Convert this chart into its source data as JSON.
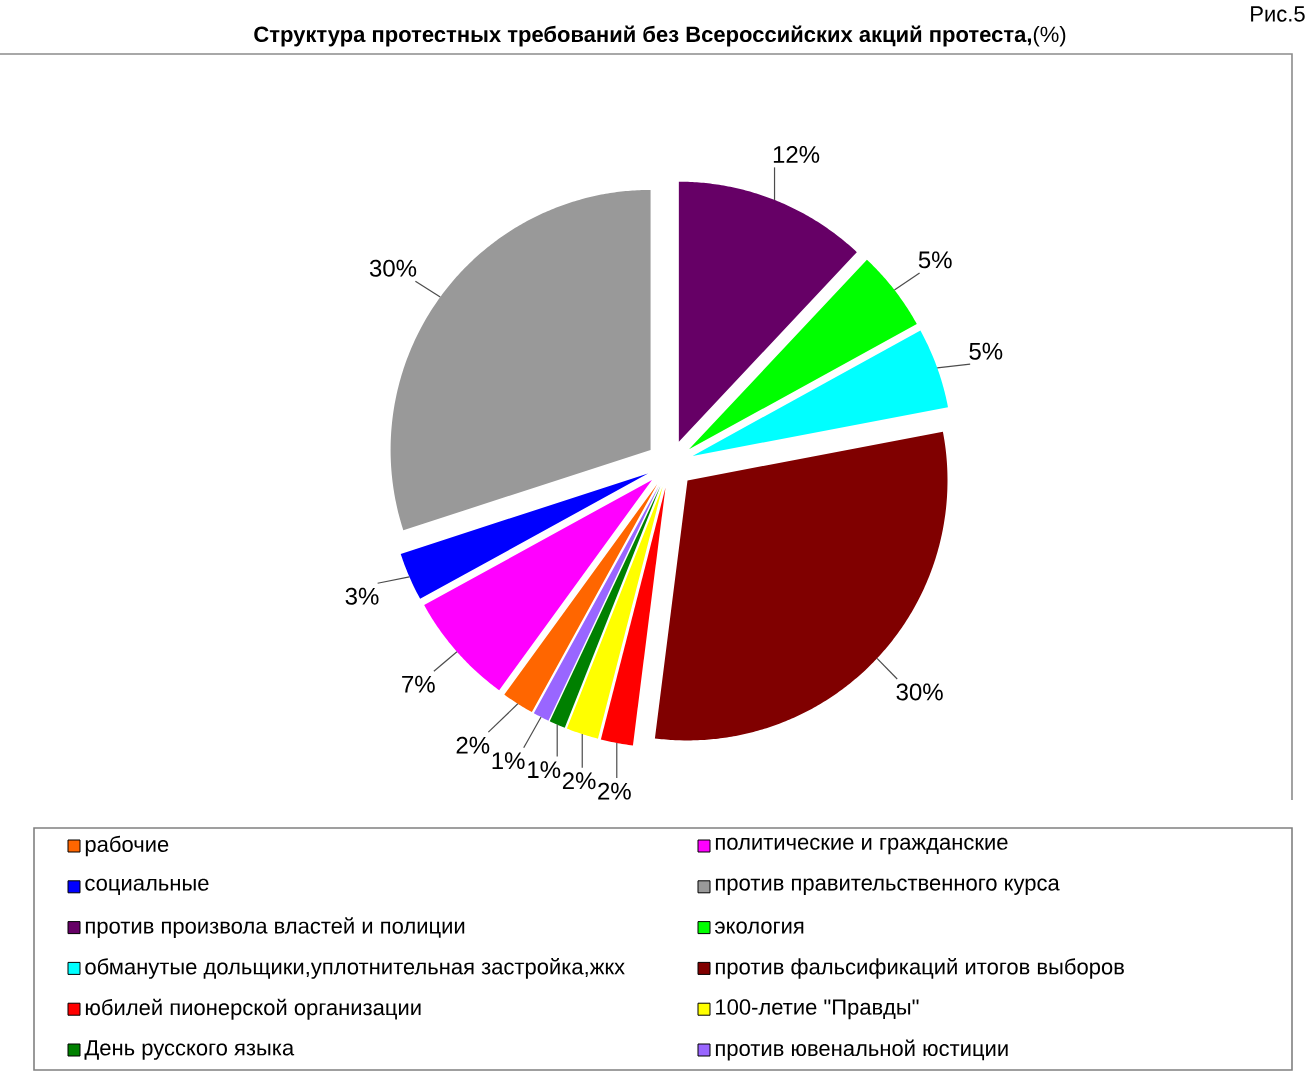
{
  "chart_data": {
    "type": "pie",
    "title": "**Структура протестных требований без Всероссийских акций протеста,**(%)",
    "categories": [
      "рабочие",
      "политические и гражданские",
      "социальные",
      "против правительственного курса",
      "против произвола властей и полиции",
      "экология",
      "обманутые дольщики,уплотнительная застройка,жкх",
      "против фальсификаций итогов выборов",
      "юбилей пионерской организации",
      "100-летие \"Правды\"",
      "День русского языка",
      "против ювенальной юстиции"
    ],
    "values": [
      2,
      7,
      3,
      30,
      12,
      5,
      5,
      30,
      2,
      2,
      1,
      1
    ],
    "value_labels": [
      "2%",
      "7%",
      "3%",
      "30%",
      "12%",
      "5%",
      "5%",
      "30%",
      "2%",
      "2%",
      "1%",
      "1%"
    ],
    "colors": [
      "#ff6600",
      "#ff00ff",
      "#0000ff",
      "#999999",
      "#660066",
      "#00ff00",
      "#00ffff",
      "#800000",
      "#ff0000",
      "#ffff00",
      "#008000",
      "#9966ff"
    ],
    "legend": "bottom",
    "annotations": [
      "Рис.5"
    ]
  }
}
